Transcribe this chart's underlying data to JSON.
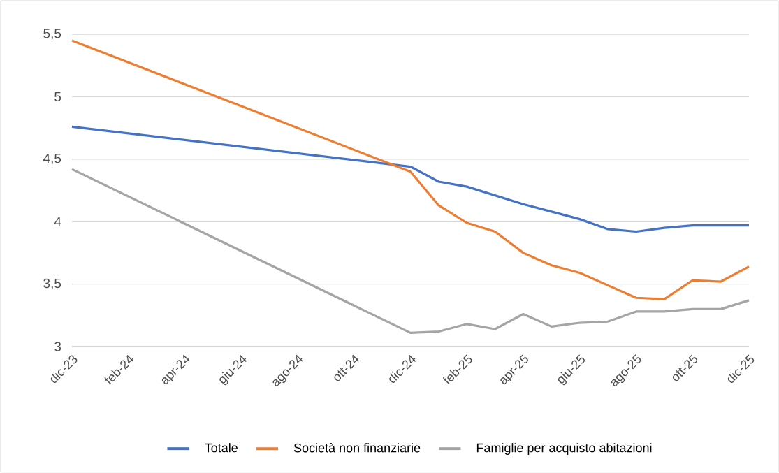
{
  "chart_data": {
    "type": "line",
    "xlim": [
      "2023-12",
      "2025-12"
    ],
    "xticks": [
      {
        "value": "2023-12",
        "label": "dic-23"
      },
      {
        "value": "2024-02",
        "label": "feb-24"
      },
      {
        "value": "2024-04",
        "label": "apr-24"
      },
      {
        "value": "2024-06",
        "label": "giu-24"
      },
      {
        "value": "2024-08",
        "label": "ago-24"
      },
      {
        "value": "2024-10",
        "label": "ott-24"
      },
      {
        "value": "2024-12",
        "label": "dic-24"
      },
      {
        "value": "2025-02",
        "label": "feb-25"
      },
      {
        "value": "2025-04",
        "label": "apr-25"
      },
      {
        "value": "2025-06",
        "label": "giu-25"
      },
      {
        "value": "2025-08",
        "label": "ago-25"
      },
      {
        "value": "2025-10",
        "label": "ott-25"
      },
      {
        "value": "2025-12",
        "label": "dic-25"
      }
    ],
    "ylim": [
      3,
      5.5
    ],
    "yticks": [
      3,
      {
        "value": 3.5,
        "label": "3,5"
      },
      4,
      {
        "value": 4.5,
        "label": "4,5"
      },
      5,
      {
        "value": 5.5,
        "label": "5,5"
      }
    ],
    "x": [
      "2023-12",
      "2024-12",
      "2025-01",
      "2025-02",
      "2025-03",
      "2025-04",
      "2025-05",
      "2025-06",
      "2025-07",
      "2025-08",
      "2025-09",
      "2025-10",
      "2025-11",
      "2025-12"
    ],
    "series": [
      {
        "name": "Totale",
        "color": "#4472c4",
        "values": [
          4.76,
          4.44,
          4.32,
          4.28,
          4.21,
          4.14,
          4.08,
          4.02,
          3.94,
          3.92,
          3.95,
          3.97,
          3.97,
          3.97
        ]
      },
      {
        "name": "Società non finanziarie",
        "color": "#ed7d31",
        "values": [
          5.45,
          4.4,
          4.13,
          3.99,
          3.92,
          3.75,
          3.65,
          3.59,
          3.49,
          3.39,
          3.38,
          3.53,
          3.52,
          3.64
        ]
      },
      {
        "name": "Famiglie per acquisto abitazioni",
        "color": "#a5a5a5",
        "values": [
          4.42,
          3.11,
          3.12,
          3.18,
          3.14,
          3.26,
          3.16,
          3.19,
          3.2,
          3.28,
          3.28,
          3.3,
          3.3,
          3.37
        ]
      }
    ],
    "grid": "y",
    "legend": "bottom",
    "marker": "none",
    "line_style": "solid"
  }
}
